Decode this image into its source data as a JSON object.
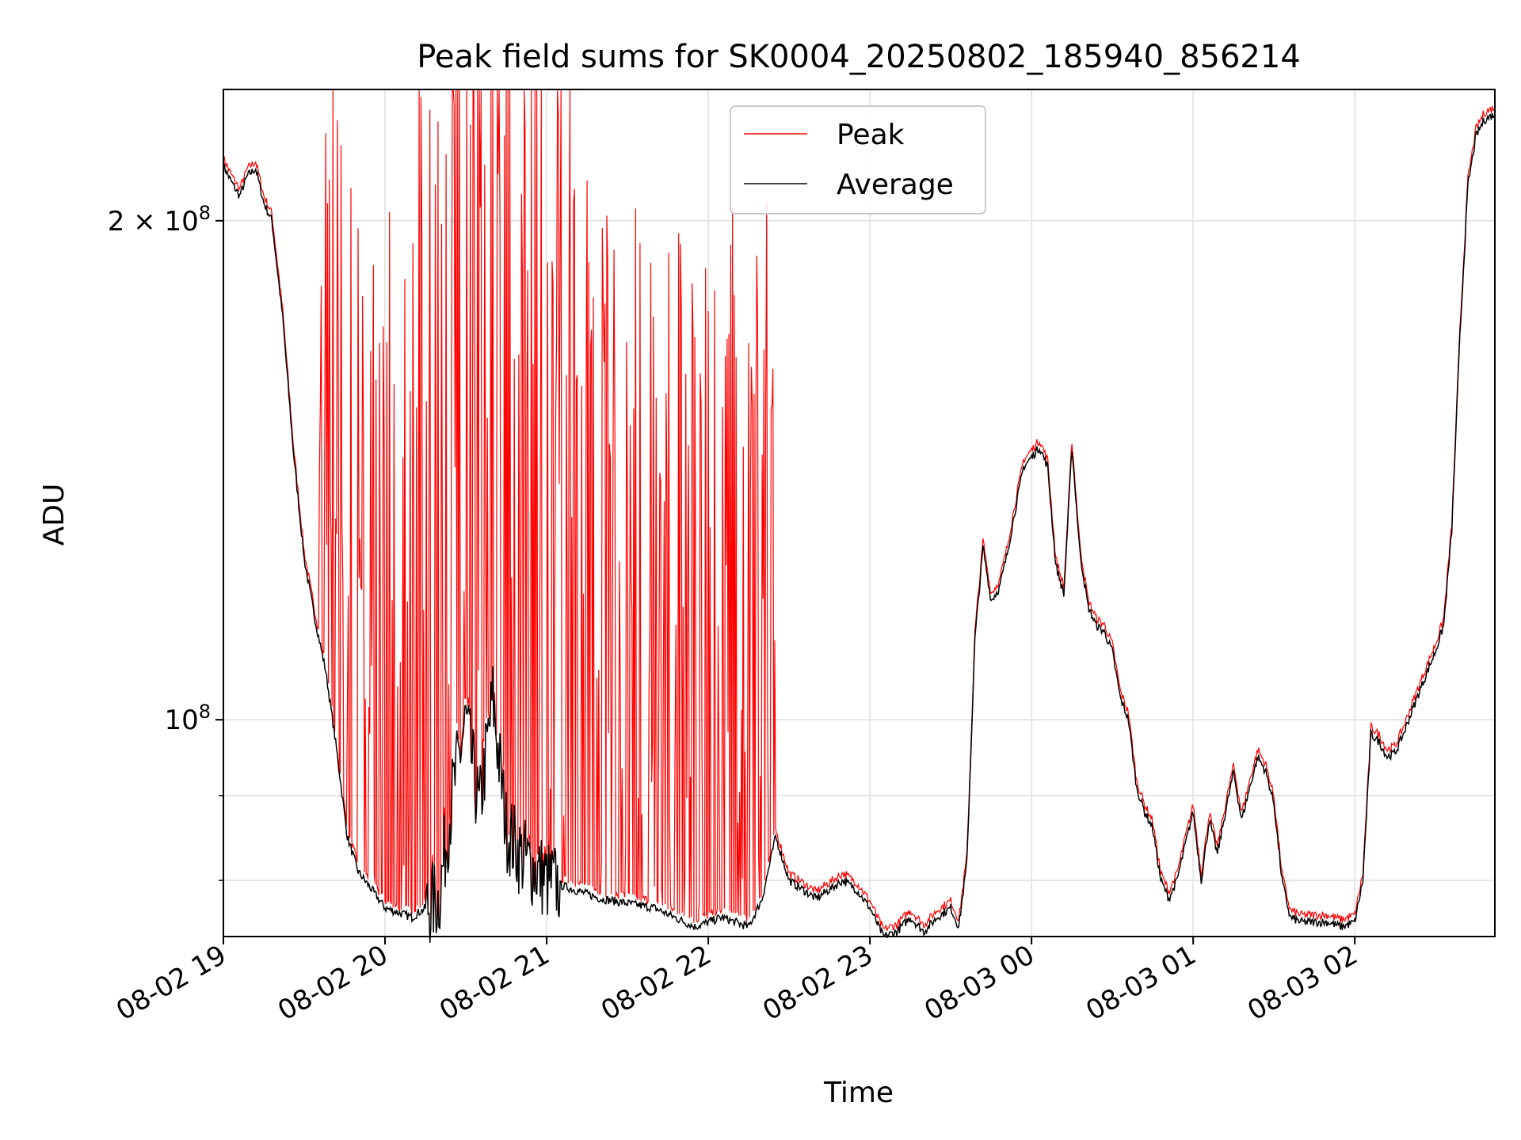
{
  "chart_data": {
    "type": "line",
    "title": "Peak field sums for SK0004_20250802_185940_856214",
    "xlabel": "Time",
    "ylabel": "ADU",
    "yscale": "log",
    "grid": true,
    "legend_position": "top-center",
    "xlim": [
      "2025-08-02 19:00",
      "2025-08-03 02:52"
    ],
    "ylim": [
      74000000,
      240000000
    ],
    "x_ticks": [
      "08-02 19",
      "08-02 20",
      "08-02 21",
      "08-02 22",
      "08-02 23",
      "08-03 00",
      "08-03 01",
      "08-03 02"
    ],
    "y_ticks": [
      {
        "value": 100000000,
        "base": "10",
        "exp": "8",
        "mantissa": ""
      },
      {
        "value": 200000000,
        "base": "10",
        "exp": "8",
        "mantissa": "2 × "
      }
    ],
    "y_minor_ticks": [
      80000000,
      90000000
    ],
    "series": [
      {
        "name": "Average",
        "color": "#000000",
        "x": [
          "2025-08-02 19:00",
          "2025-08-02 19:03",
          "2025-08-02 19:06",
          "2025-08-02 19:09",
          "2025-08-02 19:12",
          "2025-08-02 19:15",
          "2025-08-02 19:18",
          "2025-08-02 19:22",
          "2025-08-02 19:26",
          "2025-08-02 19:30",
          "2025-08-02 19:34",
          "2025-08-02 19:38",
          "2025-08-02 19:42",
          "2025-08-02 19:46",
          "2025-08-02 19:50",
          "2025-08-02 19:55",
          "2025-08-02 20:00",
          "2025-08-02 20:10",
          "2025-08-02 20:20",
          "2025-08-02 20:25",
          "2025-08-02 20:30",
          "2025-08-02 20:35",
          "2025-08-02 20:40",
          "2025-08-02 20:45",
          "2025-08-02 20:50",
          "2025-08-02 21:00",
          "2025-08-02 21:20",
          "2025-08-02 21:40",
          "2025-08-02 21:55",
          "2025-08-02 22:05",
          "2025-08-02 22:15",
          "2025-08-02 22:20",
          "2025-08-02 22:25",
          "2025-08-02 22:30",
          "2025-08-02 22:35",
          "2025-08-02 22:40",
          "2025-08-02 22:45",
          "2025-08-02 22:50",
          "2025-08-02 22:55",
          "2025-08-02 23:00",
          "2025-08-02 23:05",
          "2025-08-02 23:10",
          "2025-08-02 23:15",
          "2025-08-02 23:20",
          "2025-08-02 23:25",
          "2025-08-02 23:30",
          "2025-08-02 23:33",
          "2025-08-02 23:36",
          "2025-08-02 23:39",
          "2025-08-02 23:42",
          "2025-08-02 23:45",
          "2025-08-02 23:48",
          "2025-08-02 23:51",
          "2025-08-02 23:54",
          "2025-08-02 23:57",
          "2025-08-03 00:00",
          "2025-08-03 00:03",
          "2025-08-03 00:06",
          "2025-08-03 00:09",
          "2025-08-03 00:12",
          "2025-08-03 00:15",
          "2025-08-03 00:18",
          "2025-08-03 00:21",
          "2025-08-03 00:24",
          "2025-08-03 00:27",
          "2025-08-03 00:30",
          "2025-08-03 00:33",
          "2025-08-03 00:36",
          "2025-08-03 00:39",
          "2025-08-03 00:42",
          "2025-08-03 00:45",
          "2025-08-03 00:48",
          "2025-08-03 00:51",
          "2025-08-03 00:54",
          "2025-08-03 00:57",
          "2025-08-03 01:00",
          "2025-08-03 01:03",
          "2025-08-03 01:06",
          "2025-08-03 01:09",
          "2025-08-03 01:12",
          "2025-08-03 01:15",
          "2025-08-03 01:18",
          "2025-08-03 01:21",
          "2025-08-03 01:24",
          "2025-08-03 01:27",
          "2025-08-03 01:30",
          "2025-08-03 01:33",
          "2025-08-03 01:36",
          "2025-08-03 01:40",
          "2025-08-03 01:45",
          "2025-08-03 01:50",
          "2025-08-03 01:55",
          "2025-08-03 02:00",
          "2025-08-03 02:03",
          "2025-08-03 02:06",
          "2025-08-03 02:09",
          "2025-08-03 02:12",
          "2025-08-03 02:15",
          "2025-08-03 02:18",
          "2025-08-03 02:21",
          "2025-08-03 02:24",
          "2025-08-03 02:27",
          "2025-08-03 02:30",
          "2025-08-03 02:33",
          "2025-08-03 02:36",
          "2025-08-03 02:39",
          "2025-08-03 02:42",
          "2025-08-03 02:45",
          "2025-08-03 02:48",
          "2025-08-03 02:52"
        ],
        "values": [
          216000000,
          211000000,
          207000000,
          213000000,
          215000000,
          205000000,
          200000000,
          175000000,
          145000000,
          125000000,
          115000000,
          107000000,
          96000000,
          85000000,
          81000000,
          79000000,
          77000000,
          76000000,
          78000000,
          90000000,
          100000000,
          88000000,
          103000000,
          86000000,
          83000000,
          80000000,
          78000000,
          77000000,
          75000000,
          76000000,
          75000000,
          78000000,
          85000000,
          80000000,
          79000000,
          78000000,
          79000000,
          80000000,
          79000000,
          77000000,
          74000000,
          74500000,
          76000000,
          74500000,
          76000000,
          77000000,
          75000000,
          82000000,
          112000000,
          127000000,
          118000000,
          120000000,
          126000000,
          134000000,
          142000000,
          144000000,
          146000000,
          142000000,
          124000000,
          119000000,
          146000000,
          126000000,
          117000000,
          114000000,
          113000000,
          110000000,
          103000000,
          100000000,
          91000000,
          88000000,
          86000000,
          80000000,
          78000000,
          80000000,
          84000000,
          88000000,
          80000000,
          87000000,
          83000000,
          88000000,
          93000000,
          87000000,
          91000000,
          95000000,
          93000000,
          89000000,
          80000000,
          76000000,
          75500000,
          75500000,
          75500000,
          75000000,
          75500000,
          80000000,
          98000000,
          97000000,
          95000000,
          95500000,
          98000000,
          101000000,
          104000000,
          107000000,
          110000000,
          114000000,
          130000000,
          170000000,
          210000000,
          225000000,
          230000000,
          232000000
        ]
      },
      {
        "name": "Peak",
        "color": "#ff0000",
        "noisy_until": "2025-08-02 22:25"
      }
    ]
  },
  "legend": {
    "peak_label": "Peak",
    "average_label": "Average"
  }
}
